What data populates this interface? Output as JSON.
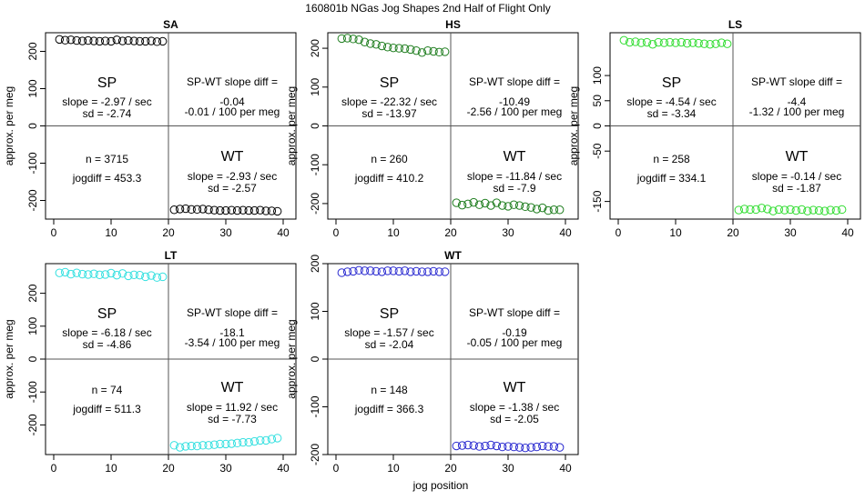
{
  "figure": {
    "title": "160801b   NGas Jog Shapes 2nd Half of Flight Only",
    "xlabel": "jog position",
    "ylabel": "approx. per meg"
  },
  "chart_data": [
    {
      "type": "scatter",
      "title": "SA",
      "color": "#000000",
      "xlim": [
        0,
        40
      ],
      "ylim": [
        -250,
        250
      ],
      "xticks": [
        "0",
        "10",
        "20",
        "30",
        "40"
      ],
      "yticks": [
        {
          "v": 200,
          "label": "200"
        },
        {
          "v": 100,
          "label": "100"
        },
        {
          "v": 0,
          "label": "0"
        },
        {
          "v": -100,
          "label": "-100"
        },
        {
          "v": -200,
          "label": "-200"
        }
      ],
      "x": [
        1,
        2,
        3,
        4,
        5,
        6,
        7,
        8,
        9,
        10,
        11,
        12,
        13,
        14,
        15,
        16,
        17,
        18,
        19
      ],
      "sp_values": [
        232,
        230,
        231,
        229,
        228,
        229,
        228,
        227,
        228,
        227,
        231,
        228,
        229,
        228,
        227,
        227,
        228,
        226,
        227
      ],
      "wt_values": [
        -225,
        -223,
        -222,
        -224,
        -224,
        -223,
        -225,
        -226,
        -227,
        -227,
        -226,
        -227,
        -226,
        -227,
        -227,
        -226,
        -228,
        -228,
        -229
      ],
      "labels": {
        "sp": "SP",
        "slope_sp": "slope = -2.97 / sec",
        "sd_sp": "sd = -2.74",
        "diff_title": "SP-WT slope diff =",
        "diff_value": "-0.04",
        "diff_per": "-0.01 / 100 per meg",
        "n": "n = 3715",
        "jogdiff": "jogdiff = 453.3",
        "wt": "WT",
        "slope_wt": "slope = -2.93 / sec",
        "sd_wt": "sd = -2.57"
      }
    },
    {
      "type": "scatter",
      "title": "HS",
      "color": "#1e7d1e",
      "xlim": [
        0,
        40
      ],
      "ylim": [
        -240,
        240
      ],
      "xticks": [
        "0",
        "10",
        "20",
        "30",
        "40"
      ],
      "yticks": [
        {
          "v": 200,
          "label": "200"
        },
        {
          "v": 100,
          "label": "100"
        },
        {
          "v": 0,
          "label": "0"
        },
        {
          "v": -100,
          "label": "-100"
        },
        {
          "v": -200,
          "label": "-200"
        }
      ],
      "x": [
        1,
        2,
        3,
        4,
        5,
        6,
        7,
        8,
        9,
        10,
        11,
        12,
        13,
        14,
        15,
        16,
        17,
        18,
        19
      ],
      "sp_values": [
        225,
        226,
        224,
        222,
        216,
        212,
        210,
        206,
        203,
        201,
        200,
        199,
        197,
        194,
        189,
        194,
        192,
        190,
        191
      ],
      "wt_values": [
        -198,
        -204,
        -201,
        -197,
        -203,
        -199,
        -205,
        -198,
        -205,
        -207,
        -203,
        -205,
        -208,
        -210,
        -214,
        -211,
        -218,
        -216,
        -216
      ],
      "labels": {
        "sp": "SP",
        "slope_sp": "slope = -22.32 / sec",
        "sd_sp": "sd = -13.97",
        "diff_title": "SP-WT slope diff =",
        "diff_value": "-10.49",
        "diff_per": "-2.56 / 100 per meg",
        "n": "n = 260",
        "jogdiff": "jogdiff = 410.2",
        "wt": "WT",
        "slope_wt": "slope = -11.84 / sec",
        "sd_wt": "sd = -7.9"
      }
    },
    {
      "type": "scatter",
      "title": "LS",
      "color": "#33dd33",
      "xlim": [
        0,
        40
      ],
      "ylim": [
        -185,
        185
      ],
      "xticks": [
        "0",
        "10",
        "20",
        "30",
        "40"
      ],
      "yticks": [
        {
          "v": 100,
          "label": "100"
        },
        {
          "v": 50,
          "label": "50"
        },
        {
          "v": 0,
          "label": "0"
        },
        {
          "v": -50,
          "label": "-50"
        },
        {
          "v": -150,
          "label": "-150"
        }
      ],
      "x": [
        1,
        2,
        3,
        4,
        5,
        6,
        7,
        8,
        9,
        10,
        11,
        12,
        13,
        14,
        15,
        16,
        17,
        18,
        19
      ],
      "sp_values": [
        170,
        166,
        167,
        165,
        166,
        162,
        166,
        165,
        166,
        165,
        166,
        164,
        165,
        164,
        163,
        162,
        163,
        165,
        163
      ],
      "wt_values": [
        -167,
        -165,
        -166,
        -166,
        -163,
        -165,
        -169,
        -166,
        -167,
        -166,
        -168,
        -166,
        -169,
        -167,
        -168,
        -169,
        -167,
        -168,
        -166
      ],
      "labels": {
        "sp": "SP",
        "slope_sp": "slope = -4.54 / sec",
        "sd_sp": "sd = -3.34",
        "diff_title": "SP-WT slope diff =",
        "diff_value": "-4.4",
        "diff_per": "-1.32 / 100 per meg",
        "n": "n = 258",
        "jogdiff": "jogdiff = 334.1",
        "wt": "WT",
        "slope_wt": "slope = -0.14 / sec",
        "sd_wt": "sd = -1.87"
      }
    },
    {
      "type": "scatter",
      "title": "LT",
      "color": "#33e0e0",
      "xlim": [
        0,
        40
      ],
      "ylim": [
        -290,
        290
      ],
      "xticks": [
        "0",
        "10",
        "20",
        "30",
        "40"
      ],
      "yticks": [
        {
          "v": 200,
          "label": "200"
        },
        {
          "v": 100,
          "label": "100"
        },
        {
          "v": 0,
          "label": "0"
        },
        {
          "v": -100,
          "label": "-100"
        },
        {
          "v": -200,
          "label": "-200"
        }
      ],
      "x": [
        1,
        2,
        3,
        4,
        5,
        6,
        7,
        8,
        9,
        10,
        11,
        12,
        13,
        14,
        15,
        16,
        17,
        18,
        19
      ],
      "sp_values": [
        262,
        264,
        258,
        262,
        258,
        257,
        259,
        256,
        257,
        261,
        255,
        260,
        253,
        256,
        255,
        250,
        254,
        248,
        250
      ],
      "wt_values": [
        -262,
        -268,
        -265,
        -264,
        -264,
        -262,
        -262,
        -260,
        -258,
        -258,
        -257,
        -255,
        -253,
        -253,
        -250,
        -247,
        -247,
        -243,
        -240
      ],
      "labels": {
        "sp": "SP",
        "slope_sp": "slope = -6.18 / sec",
        "sd_sp": "sd = -4.86",
        "diff_title": "SP-WT slope diff =",
        "diff_value": "-18.1",
        "diff_per": "-3.54 / 100 per meg",
        "n": "n = 74",
        "jogdiff": "jogdiff = 511.3",
        "wt": "WT",
        "slope_wt": "slope = 11.92 / sec",
        "sd_wt": "sd = -7.73"
      }
    },
    {
      "type": "scatter",
      "title": "WT",
      "color": "#2b2bd0",
      "xlim": [
        0,
        40
      ],
      "ylim": [
        -200,
        200
      ],
      "xticks": [
        "0",
        "10",
        "20",
        "30",
        "40"
      ],
      "yticks": [
        {
          "v": 200,
          "label": "200"
        },
        {
          "v": 100,
          "label": "100"
        },
        {
          "v": 0,
          "label": "0"
        },
        {
          "v": -100,
          "label": "-100"
        },
        {
          "v": -200,
          "label": "-200"
        }
      ],
      "x": [
        1,
        2,
        3,
        4,
        5,
        6,
        7,
        8,
        9,
        10,
        11,
        12,
        13,
        14,
        15,
        16,
        17,
        18,
        19
      ],
      "sp_values": [
        181,
        183,
        184,
        186,
        185,
        185,
        184,
        183,
        185,
        185,
        184,
        185,
        183,
        184,
        183,
        183,
        184,
        183,
        183
      ],
      "wt_values": [
        -182,
        -181,
        -180,
        -181,
        -183,
        -182,
        -180,
        -182,
        -184,
        -183,
        -184,
        -185,
        -186,
        -185,
        -184,
        -182,
        -183,
        -183,
        -185
      ],
      "labels": {
        "sp": "SP",
        "slope_sp": "slope = -1.57 / sec",
        "sd_sp": "sd = -2.04",
        "diff_title": "SP-WT slope diff =",
        "diff_value": "-0.19",
        "diff_per": "-0.05 / 100 per meg",
        "n": "n = 148",
        "jogdiff": "jogdiff = 366.3",
        "wt": "WT",
        "slope_wt": "slope = -1.38 / sec",
        "sd_wt": "sd = -2.05"
      }
    }
  ]
}
